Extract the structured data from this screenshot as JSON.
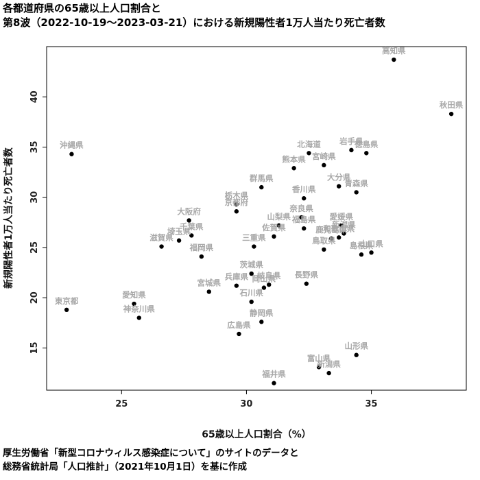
{
  "title": {
    "line1": "各都道府県の65歳以上人口割合と",
    "line2": "第8波（2022-10-19〜2023-03-21）における新規陽性者1万人当たり死亡者数"
  },
  "source": {
    "line1": "厚生労働省「新型コロナウィルス感染症について」のサイトのデータと",
    "line2": "総務省統計局「人口推計」（2021年10月1日）を基に作成"
  },
  "chart_data": {
    "type": "scatter",
    "xlabel": "65歳以上人口割合（%）",
    "ylabel": "新規陽性者1万人当たり死亡者数",
    "xlim": [
      22.0,
      38.8
    ],
    "ylim": [
      10.8,
      45.0
    ],
    "xticks": [
      25,
      30,
      35
    ],
    "yticks": [
      15,
      20,
      25,
      30,
      35,
      40
    ],
    "grid": false,
    "marker_color": "#000000",
    "label_color": "#a8a8a8",
    "points": [
      {
        "name": "高知県",
        "x": 35.9,
        "y": 43.7
      },
      {
        "name": "秋田県",
        "x": 38.2,
        "y": 38.3
      },
      {
        "name": "沖縄県",
        "x": 23.0,
        "y": 34.3
      },
      {
        "name": "北海道",
        "x": 32.5,
        "y": 34.4
      },
      {
        "name": "岩手県",
        "x": 34.2,
        "y": 34.7
      },
      {
        "name": "徳島県",
        "x": 34.8,
        "y": 34.4
      },
      {
        "name": "熊本県",
        "x": 31.9,
        "y": 32.9
      },
      {
        "name": "宮崎県",
        "x": 33.1,
        "y": 33.2
      },
      {
        "name": "群馬県",
        "x": 30.6,
        "y": 31.0
      },
      {
        "name": "大分県",
        "x": 33.7,
        "y": 31.1
      },
      {
        "name": "青森県",
        "x": 34.4,
        "y": 30.5
      },
      {
        "name": "香川県",
        "x": 32.3,
        "y": 29.9
      },
      {
        "name": "栃木県",
        "x": 29.6,
        "y": 29.3
      },
      {
        "name": "京都府",
        "x": 29.6,
        "y": 28.6
      },
      {
        "name": "大阪府",
        "x": 27.7,
        "y": 27.7
      },
      {
        "name": "奈良県",
        "x": 32.2,
        "y": 28.0
      },
      {
        "name": "山梨県",
        "x": 31.3,
        "y": 27.2
      },
      {
        "name": "福島県",
        "x": 32.3,
        "y": 26.9
      },
      {
        "name": "愛媛県",
        "x": 33.8,
        "y": 27.2
      },
      {
        "name": "千葉県",
        "x": 27.8,
        "y": 26.2
      },
      {
        "name": "佐賀県",
        "x": 31.1,
        "y": 26.1
      },
      {
        "name": "新潟県",
        "x": 33.9,
        "y": 26.4
      },
      {
        "name": "和歌山県",
        "x": 33.7,
        "y": 26.0
      },
      {
        "name": "埼玉県",
        "x": 27.3,
        "y": 25.7
      },
      {
        "name": "滋賀県",
        "x": 26.6,
        "y": 25.1
      },
      {
        "name": "三重県",
        "x": 30.3,
        "y": 25.1
      },
      {
        "name": "鹿児島県",
        "x": 33.4,
        "y": 25.9
      },
      {
        "name": "鳥取県",
        "x": 33.1,
        "y": 24.8
      },
      {
        "name": "島根県",
        "x": 34.6,
        "y": 24.3
      },
      {
        "name": "山口県",
        "x": 35.0,
        "y": 24.5
      },
      {
        "name": "福岡県",
        "x": 28.2,
        "y": 24.1
      },
      {
        "name": "茨城県",
        "x": 30.2,
        "y": 22.4
      },
      {
        "name": "長野県",
        "x": 32.4,
        "y": 21.4
      },
      {
        "name": "兵庫県",
        "x": 29.6,
        "y": 21.2
      },
      {
        "name": "岐阜県",
        "x": 30.9,
        "y": 21.3
      },
      {
        "name": "岡山県",
        "x": 30.7,
        "y": 21.0
      },
      {
        "name": "宮城県",
        "x": 28.5,
        "y": 20.6
      },
      {
        "name": "石川県",
        "x": 30.2,
        "y": 19.6
      },
      {
        "name": "愛知県",
        "x": 25.5,
        "y": 19.4
      },
      {
        "name": "東京都",
        "x": 22.8,
        "y": 18.8
      },
      {
        "name": "神奈川県",
        "x": 25.7,
        "y": 18.0
      },
      {
        "name": "静岡県",
        "x": 30.6,
        "y": 17.6
      },
      {
        "name": "広島県",
        "x": 29.7,
        "y": 16.4
      },
      {
        "name": "山形県",
        "x": 34.4,
        "y": 14.3
      },
      {
        "name": "富山県",
        "x": 32.9,
        "y": 13.1
      },
      {
        "name": "新潟県",
        "x": 33.3,
        "y": 12.5
      },
      {
        "name": "福井県",
        "x": 31.1,
        "y": 11.5
      }
    ]
  }
}
